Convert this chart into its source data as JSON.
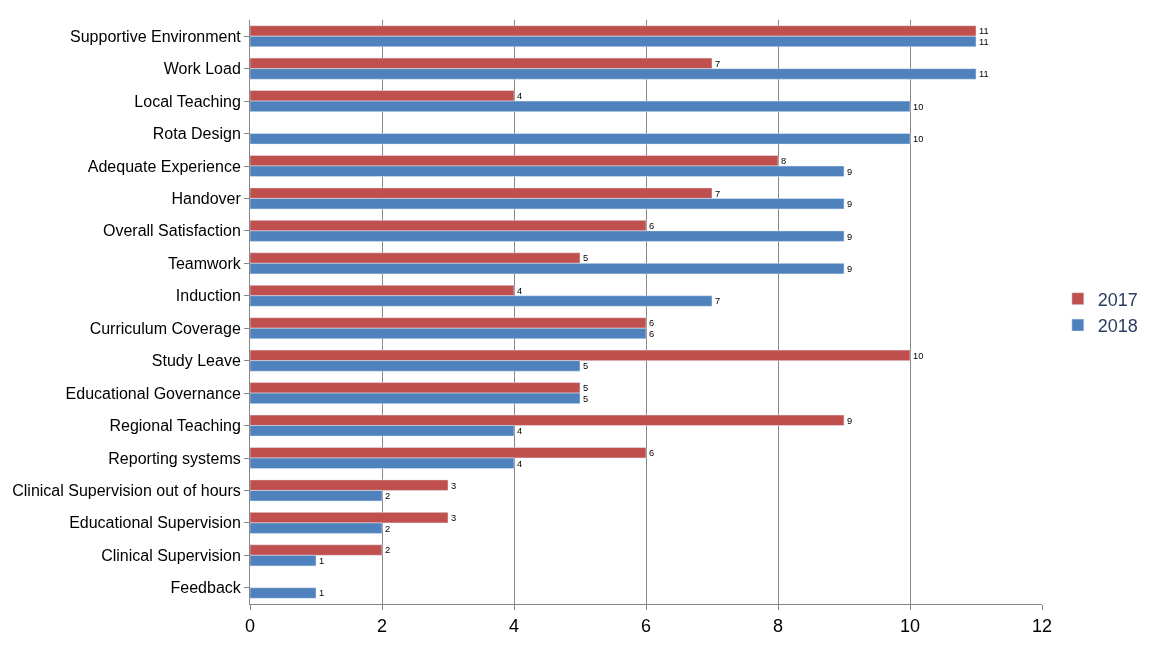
{
  "chart_data": {
    "type": "bar",
    "orientation": "horizontal",
    "categories": [
      "Supportive Environment",
      "Work Load",
      "Local Teaching",
      "Rota Design",
      "Adequate Experience",
      "Handover",
      "Overall Satisfaction",
      "Teamwork",
      "Induction",
      "Curriculum Coverage",
      "Study Leave",
      "Educational Governance",
      "Regional Teaching",
      "Reporting systems",
      "Clinical Supervision out of hours",
      "Educational Supervision",
      "Clinical Supervision",
      "Feedback"
    ],
    "series": [
      {
        "name": "2017",
        "color": "#c0504d",
        "values": [
          11,
          7,
          4,
          null,
          8,
          7,
          6,
          5,
          4,
          6,
          10,
          5,
          9,
          6,
          3,
          3,
          2,
          null
        ]
      },
      {
        "name": "2018",
        "color": "#4f81bd",
        "values": [
          11,
          11,
          10,
          10,
          9,
          9,
          9,
          9,
          7,
          6,
          5,
          5,
          4,
          4,
          2,
          2,
          1,
          1
        ]
      }
    ],
    "xlim": [
      0,
      12
    ],
    "xticks": [
      0,
      2,
      4,
      6,
      8,
      10,
      12
    ],
    "grid": "x",
    "legend": "right",
    "data_labels": true
  }
}
